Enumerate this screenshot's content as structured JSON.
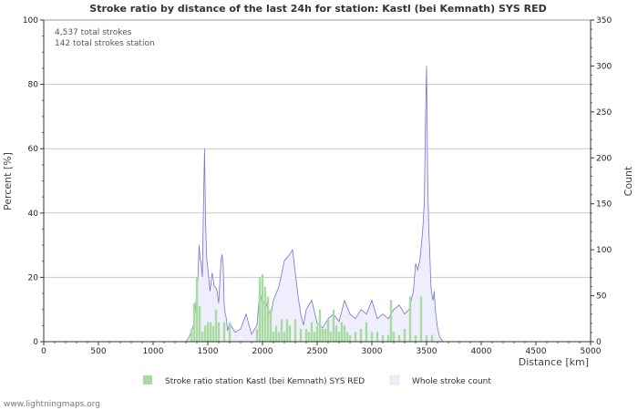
{
  "chart_data": {
    "type": "bar+area",
    "title": "Stroke ratio by distance of the last 24h for station: Kastl (bei Kemnath) SYS RED",
    "xlabel": "Distance   [km]",
    "ylabel_left": "Percent   [%]",
    "ylabel_right": "Count",
    "xlim": [
      0,
      5000
    ],
    "ylim_left": [
      0,
      100
    ],
    "ylim_right": [
      0,
      350
    ],
    "x_ticks": [
      0,
      500,
      1000,
      1500,
      2000,
      2500,
      3000,
      3500,
      4000,
      4500,
      5000
    ],
    "y_left_ticks": [
      0,
      20,
      40,
      60,
      80,
      100
    ],
    "y_right_ticks": [
      0,
      50,
      100,
      150,
      200,
      250,
      300,
      350
    ],
    "stats": [
      "4,537 total strokes",
      "142 total strokes station"
    ],
    "series": [
      {
        "name": "Stroke ratio station Kastl (bei Kemnath) SYS RED",
        "axis": "left",
        "color": "#a8dba0",
        "x": [
          1350,
          1375,
          1400,
          1425,
          1450,
          1475,
          1500,
          1525,
          1550,
          1575,
          1600,
          1650,
          1700,
          1950,
          1975,
          2000,
          2025,
          2050,
          2075,
          2100,
          2125,
          2150,
          2175,
          2200,
          2225,
          2250,
          2300,
          2350,
          2400,
          2425,
          2450,
          2475,
          2500,
          2525,
          2550,
          2575,
          2600,
          2625,
          2650,
          2675,
          2700,
          2725,
          2750,
          2775,
          2800,
          2850,
          2900,
          2950,
          3000,
          3050,
          3100,
          3150,
          3175,
          3200,
          3250,
          3300,
          3350,
          3400,
          3450,
          3500,
          3550
        ],
        "values": [
          4,
          12,
          20,
          11,
          3,
          5,
          6,
          6,
          5,
          10,
          6,
          6,
          6,
          4,
          20,
          21,
          17,
          14,
          10,
          3,
          5,
          3,
          7,
          3,
          7,
          5,
          7,
          4,
          4,
          3,
          6,
          3,
          5,
          10,
          4,
          4,
          7,
          3,
          10,
          5,
          3,
          6,
          5,
          3,
          2,
          3,
          4,
          6,
          3,
          3,
          2,
          2,
          13,
          3,
          2,
          4,
          14,
          2,
          14,
          2,
          2
        ]
      },
      {
        "name": "Whole stroke count",
        "axis": "right",
        "color": "#eeeefc",
        "line_color": "#7575cc",
        "x": [
          1300,
          1330,
          1350,
          1370,
          1380,
          1390,
          1400,
          1410,
          1420,
          1430,
          1440,
          1450,
          1460,
          1470,
          1480,
          1490,
          1500,
          1520,
          1540,
          1560,
          1580,
          1600,
          1620,
          1630,
          1640,
          1650,
          1660,
          1670,
          1680,
          1700,
          1750,
          1800,
          1850,
          1900,
          1950,
          1975,
          2000,
          2025,
          2050,
          2075,
          2100,
          2150,
          2200,
          2250,
          2275,
          2300,
          2325,
          2350,
          2375,
          2400,
          2450,
          2500,
          2550,
          2600,
          2650,
          2700,
          2750,
          2800,
          2850,
          2900,
          2950,
          3000,
          3050,
          3100,
          3150,
          3200,
          3250,
          3300,
          3340,
          3380,
          3400,
          3420,
          3440,
          3460,
          3470,
          3480,
          3490,
          3500,
          3510,
          3520,
          3530,
          3540,
          3550,
          3560,
          3570,
          3580,
          3600,
          3620,
          3650,
          3700
        ],
        "values": [
          0,
          5,
          12,
          18,
          30,
          40,
          55,
          70,
          105,
          90,
          85,
          70,
          145,
          210,
          130,
          90,
          80,
          55,
          75,
          60,
          58,
          42,
          88,
          95,
          85,
          40,
          30,
          25,
          12,
          20,
          10,
          14,
          30,
          8,
          18,
          55,
          40,
          45,
          35,
          28,
          45,
          60,
          88,
          95,
          100,
          75,
          50,
          30,
          18,
          35,
          45,
          20,
          15,
          25,
          30,
          22,
          45,
          30,
          25,
          35,
          30,
          45,
          25,
          30,
          25,
          35,
          40,
          30,
          35,
          55,
          85,
          78,
          90,
          115,
          130,
          155,
          240,
          300,
          180,
          125,
          95,
          60,
          50,
          45,
          55,
          35,
          15,
          5,
          0,
          0
        ]
      }
    ]
  },
  "legend": [
    {
      "label": "Stroke ratio station Kastl (bei Kemnath) SYS RED",
      "color": "#a8dba0"
    },
    {
      "label": "Whole stroke count",
      "color": "#eeeefc"
    }
  ],
  "footer": "www.lightningmaps.org"
}
